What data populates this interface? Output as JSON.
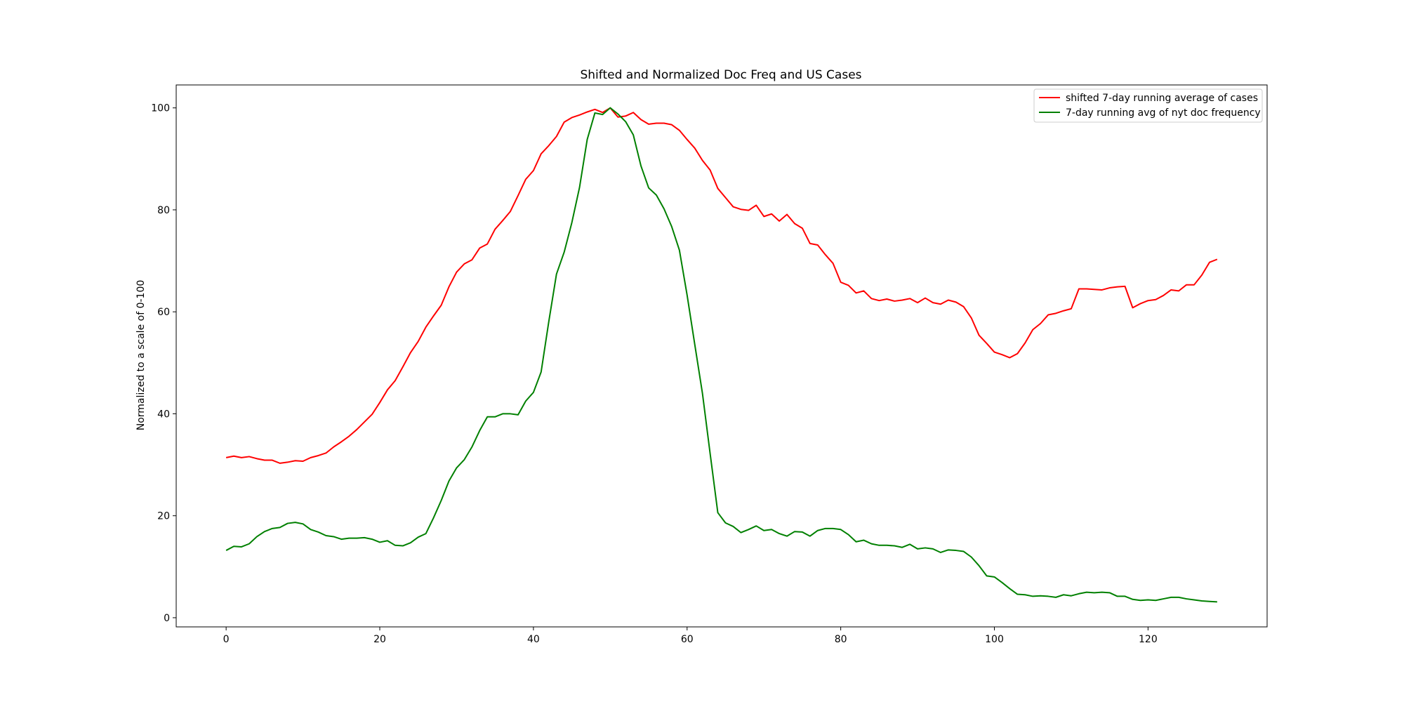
{
  "chart_data": {
    "type": "line",
    "title": "Shifted and Normalized Doc Freq and US Cases",
    "xlabel": "",
    "ylabel": "Normalized to a scale of 0-100",
    "xlim": [
      -6.5,
      135.5
    ],
    "ylim": [
      -1.8,
      104.5
    ],
    "xticks": [
      0,
      20,
      40,
      60,
      80,
      100,
      120
    ],
    "yticks": [
      0,
      20,
      40,
      60,
      80,
      100
    ],
    "grid": false,
    "legend_position": "top-right",
    "series": [
      {
        "name": "shifted 7-day running average of cases",
        "color": "#ff0000",
        "values": [
          31.4,
          31.7,
          31.4,
          31.6,
          31.2,
          30.9,
          30.9,
          30.3,
          30.5,
          30.8,
          30.7,
          31.4,
          31.8,
          32.3,
          33.5,
          34.5,
          35.6,
          36.9,
          38.4,
          39.9,
          42.2,
          44.7,
          46.5,
          49.2,
          52.0,
          54.2,
          57.0,
          59.2,
          61.3,
          64.9,
          67.8,
          69.4,
          70.2,
          72.5,
          73.3,
          76.2,
          77.9,
          79.7,
          82.8,
          86.0,
          87.7,
          91.0,
          92.6,
          94.4,
          97.2,
          98.1,
          98.6,
          99.2,
          99.7,
          99.1,
          100.0,
          98.2,
          98.4,
          99.1,
          97.7,
          96.8,
          97.0,
          97.0,
          96.7,
          95.6,
          93.8,
          92.1,
          89.7,
          87.8,
          84.2,
          82.4,
          80.6,
          80.1,
          79.9,
          80.9,
          78.7,
          79.2,
          77.8,
          79.1,
          77.3,
          76.4,
          73.4,
          73.1,
          71.2,
          69.5,
          65.8,
          65.2,
          63.7,
          64.1,
          62.6,
          62.2,
          62.5,
          62.1,
          62.3,
          62.6,
          61.8,
          62.7,
          61.8,
          61.5,
          62.3,
          61.9,
          61.0,
          58.8,
          55.4,
          53.8,
          52.1,
          51.6,
          51.0,
          51.8,
          53.9,
          56.5,
          57.7,
          59.4,
          59.7,
          60.2,
          60.6,
          64.5,
          64.5,
          64.4,
          64.3,
          64.7,
          64.9,
          65.0,
          60.8,
          61.6,
          62.2,
          62.4,
          63.2,
          64.3,
          64.1,
          65.3,
          65.3,
          67.2,
          69.7,
          70.3
        ]
      },
      {
        "name": "7-day running avg of nyt doc frequency",
        "color": "#008000",
        "values": [
          13.2,
          14.0,
          13.9,
          14.5,
          15.9,
          16.9,
          17.5,
          17.7,
          18.5,
          18.7,
          18.4,
          17.3,
          16.8,
          16.1,
          15.9,
          15.4,
          15.6,
          15.6,
          15.7,
          15.4,
          14.8,
          15.1,
          14.2,
          14.1,
          14.7,
          15.8,
          16.5,
          19.6,
          23.0,
          26.8,
          29.4,
          31.0,
          33.5,
          36.7,
          39.4,
          39.4,
          40.0,
          40.0,
          39.8,
          42.5,
          44.2,
          48.2,
          58.1,
          67.4,
          71.7,
          77.5,
          84.4,
          93.8,
          99.0,
          98.7,
          100.0,
          98.8,
          97.3,
          94.7,
          88.6,
          84.3,
          82.9,
          80.2,
          76.7,
          72.1,
          63.3,
          53.6,
          44.0,
          32.2,
          20.6,
          18.6,
          17.9,
          16.7,
          17.3,
          18.0,
          17.1,
          17.3,
          16.5,
          16.0,
          16.9,
          16.8,
          16.0,
          17.1,
          17.5,
          17.5,
          17.3,
          16.3,
          14.9,
          15.2,
          14.5,
          14.2,
          14.2,
          14.1,
          13.8,
          14.4,
          13.5,
          13.7,
          13.5,
          12.8,
          13.3,
          13.2,
          13.0,
          11.9,
          10.2,
          8.2,
          8.0,
          6.9,
          5.7,
          4.6,
          4.5,
          4.2,
          4.3,
          4.2,
          4.0,
          4.5,
          4.3,
          4.7,
          5.0,
          4.9,
          5.0,
          4.9,
          4.2,
          4.2,
          3.6,
          3.4,
          3.5,
          3.4,
          3.7,
          4.0,
          4.0,
          3.7,
          3.5,
          3.3,
          3.2,
          3.1
        ]
      }
    ]
  }
}
